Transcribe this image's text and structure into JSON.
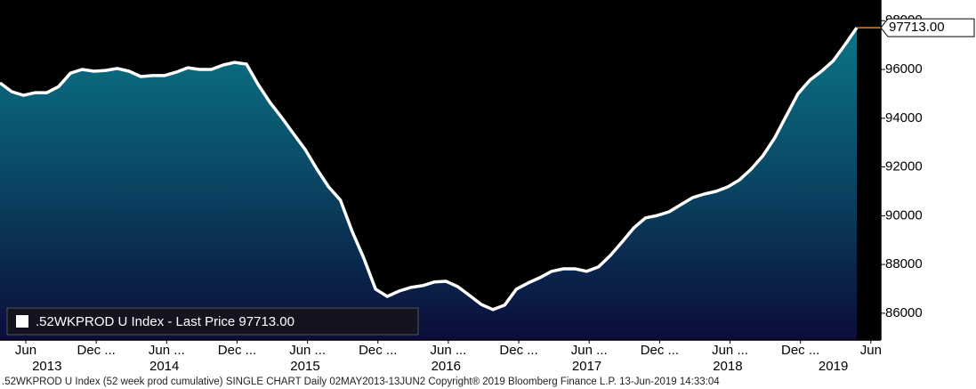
{
  "chart_data": {
    "type": "area",
    "x": [
      "2013-05",
      "2013-06",
      "2013-07",
      "2013-08",
      "2013-09",
      "2013-10",
      "2013-11",
      "2013-12",
      "2014-01",
      "2014-02",
      "2014-03",
      "2014-04",
      "2014-05",
      "2014-06",
      "2014-07",
      "2014-08",
      "2014-09",
      "2014-10",
      "2014-11",
      "2014-12",
      "2015-01",
      "2015-02",
      "2015-03",
      "2015-04",
      "2015-05",
      "2015-06",
      "2015-07",
      "2015-08",
      "2015-09",
      "2015-10",
      "2015-11",
      "2015-12",
      "2016-01",
      "2016-02",
      "2016-03",
      "2016-04",
      "2016-05",
      "2016-06",
      "2016-07",
      "2016-08",
      "2016-09",
      "2016-10",
      "2016-11",
      "2016-12",
      "2017-01",
      "2017-02",
      "2017-03",
      "2017-04",
      "2017-05",
      "2017-06",
      "2017-07",
      "2017-08",
      "2017-09",
      "2017-10",
      "2017-11",
      "2017-12",
      "2018-01",
      "2018-02",
      "2018-03",
      "2018-04",
      "2018-05",
      "2018-06",
      "2018-07",
      "2018-08",
      "2018-09",
      "2018-10",
      "2018-11",
      "2018-12",
      "2019-01",
      "2019-02",
      "2019-03",
      "2019-04",
      "2019-05",
      "2019-06"
    ],
    "series": [
      {
        "name": ".52WKPROD U Index - Last Price",
        "color": "#ffffff",
        "values": [
          95450,
          95090,
          94940,
          95050,
          95050,
          95300,
          95850,
          96000,
          95930,
          95960,
          96040,
          95930,
          95710,
          95750,
          95750,
          95890,
          96070,
          96000,
          96000,
          96180,
          96290,
          96220,
          95380,
          94650,
          94030,
          93370,
          92720,
          91910,
          91180,
          90640,
          89360,
          88260,
          86990,
          86690,
          86910,
          87060,
          87130,
          87280,
          87310,
          87090,
          86730,
          86360,
          86150,
          86330,
          86990,
          87240,
          87460,
          87720,
          87820,
          87820,
          87720,
          87900,
          88370,
          88920,
          89500,
          89910,
          90010,
          90160,
          90450,
          90740,
          90890,
          91000,
          91180,
          91470,
          91910,
          92460,
          93190,
          94100,
          95010,
          95560,
          95930,
          96360,
          97020,
          97713
        ],
        "value_labels": [
          null,
          null,
          null,
          null,
          null,
          null,
          null,
          null,
          null,
          null,
          null,
          null,
          null,
          null,
          null,
          null,
          null,
          null,
          null,
          null,
          null,
          null,
          null,
          null,
          null,
          null,
          null,
          null,
          null,
          null,
          null,
          null,
          null,
          null,
          null,
          null,
          null,
          null,
          null,
          null,
          null,
          null,
          null,
          null,
          null,
          null,
          null,
          null,
          null,
          null,
          null,
          null,
          null,
          null,
          null,
          null,
          null,
          null,
          null,
          null,
          null,
          null,
          null,
          null,
          null,
          null,
          null,
          null,
          null,
          null,
          null,
          null,
          null,
          "97713.00"
        ]
      }
    ],
    "xlim": [
      "2013-05",
      "2019-06"
    ],
    "xticks": [
      {
        "value": "2013-06",
        "label": "Jun"
      },
      {
        "value": "2013-12",
        "label": "Dec ..."
      },
      {
        "value": "2014-06",
        "label": "Jun ..."
      },
      {
        "value": "2014-12",
        "label": "Dec ..."
      },
      {
        "value": "2015-06",
        "label": "Jun ..."
      },
      {
        "value": "2015-12",
        "label": "Dec ..."
      },
      {
        "value": "2016-06",
        "label": "Jun ..."
      },
      {
        "value": "2016-12",
        "label": "Dec ..."
      },
      {
        "value": "2017-06",
        "label": "Jun ..."
      },
      {
        "value": "2017-12",
        "label": "Dec ..."
      },
      {
        "value": "2018-06",
        "label": "Jun ..."
      },
      {
        "value": "2018-12",
        "label": "Dec ..."
      },
      {
        "value": "2019-06",
        "label": "Jun"
      }
    ],
    "year_labels": [
      "2013",
      "2014",
      "2015",
      "2016",
      "2017",
      "2018",
      "2019"
    ],
    "ylim": [
      84900,
      98850
    ],
    "yticks": [
      86000,
      88000,
      90000,
      92000,
      94000,
      96000,
      98000
    ],
    "last_price_line_color": "#e8822a",
    "footer": ".52WKPROD U Index (52 week prod cumulative) SINGLE CHART  Daily 02MAY2013-13JUN2 Copyright® 2019 Bloomberg Finance L.P.  13-Jun-2019 14:33:04"
  }
}
